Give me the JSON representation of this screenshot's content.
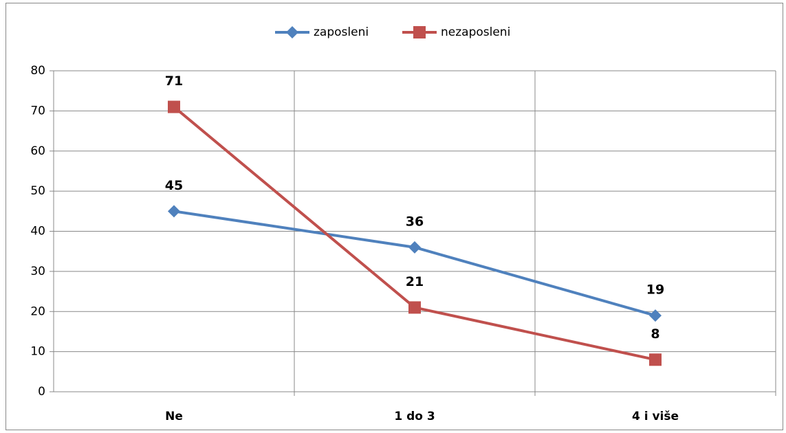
{
  "chart_data": {
    "type": "line",
    "categories": [
      "Ne",
      "1 do 3",
      "4 i više"
    ],
    "series": [
      {
        "name": "zaposleni",
        "color": "#4f81bd",
        "marker": "diamond",
        "values": [
          45,
          36,
          19
        ]
      },
      {
        "name": "nezaposleni",
        "color": "#c0504d",
        "marker": "square",
        "values": [
          71,
          21,
          8
        ]
      }
    ],
    "ylim": [
      0,
      80
    ],
    "yticks": [
      0,
      10,
      20,
      30,
      40,
      50,
      60,
      70,
      80
    ],
    "grid": true,
    "legend": "top"
  }
}
